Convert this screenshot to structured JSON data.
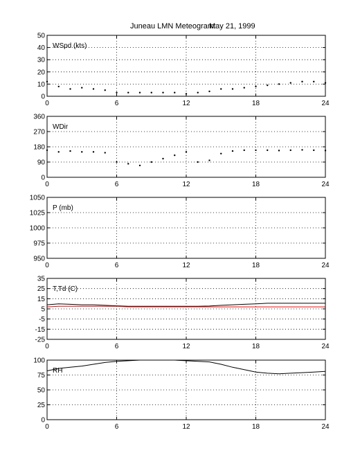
{
  "title": {
    "station": "Juneau LMN Meteogram:",
    "date": "May 21, 1999"
  },
  "chart_data": [
    {
      "type": "scatter",
      "label": "WSpd (kts)",
      "xlim": [
        0,
        24
      ],
      "xticks": [
        0,
        6,
        12,
        18,
        24
      ],
      "ylim": [
        0,
        50
      ],
      "yticks": [
        0,
        10,
        20,
        30,
        40,
        50
      ],
      "grid": true,
      "series": [
        {
          "color": "#000000",
          "x": [
            0,
            1,
            2,
            3,
            4,
            5,
            6,
            7,
            8,
            9,
            10,
            11,
            12,
            13,
            14,
            15,
            16,
            17,
            18,
            19,
            20,
            21,
            22,
            23,
            24
          ],
          "y": [
            12,
            8,
            6,
            7,
            6,
            5,
            3,
            3,
            3,
            3,
            3,
            3,
            2,
            3,
            4,
            6,
            6,
            7,
            8,
            9,
            10,
            11,
            12,
            12,
            11
          ]
        }
      ]
    },
    {
      "type": "scatter",
      "label": "WDir",
      "xlim": [
        0,
        24
      ],
      "xticks": [
        0,
        6,
        12,
        18,
        24
      ],
      "ylim": [
        0,
        360
      ],
      "yticks": [
        0,
        90,
        180,
        270,
        360
      ],
      "grid": true,
      "series": [
        {
          "color": "#000000",
          "x": [
            0,
            1,
            2,
            3,
            4,
            5,
            6,
            7,
            8,
            9,
            10,
            11,
            12,
            13,
            14,
            15,
            16,
            17,
            18,
            19,
            20,
            21,
            22,
            23,
            24
          ],
          "y": [
            160,
            150,
            155,
            150,
            150,
            145,
            90,
            80,
            70,
            90,
            110,
            130,
            150,
            90,
            100,
            140,
            155,
            160,
            160,
            160,
            158,
            160,
            162,
            160,
            158
          ]
        }
      ]
    },
    {
      "type": "line",
      "label": "P (mb)",
      "xlim": [
        0,
        24
      ],
      "xticks": [
        0,
        6,
        12,
        18,
        24
      ],
      "ylim": [
        950,
        1050
      ],
      "yticks": [
        950,
        975,
        1000,
        1025,
        1050
      ],
      "grid": true,
      "series": []
    },
    {
      "type": "line",
      "label": "T,Td (C)",
      "xlim": [
        0,
        24
      ],
      "xticks": [
        0,
        6,
        12,
        18,
        24
      ],
      "ylim": [
        -25,
        35
      ],
      "yticks": [
        -25,
        -15,
        -5,
        5,
        15,
        25,
        35
      ],
      "grid": true,
      "series": [
        {
          "color": "#000000",
          "x": [
            0,
            1,
            2,
            3,
            4,
            5,
            6,
            7,
            8,
            9,
            10,
            11,
            12,
            13,
            14,
            15,
            16,
            17,
            18,
            19,
            20,
            21,
            22,
            23,
            24
          ],
          "y": [
            9,
            10,
            9.5,
            9,
            9,
            8.5,
            8,
            7.5,
            7.5,
            7.5,
            7.5,
            7.5,
            7.5,
            7.5,
            7.8,
            8.5,
            9,
            9.5,
            10,
            10.5,
            10.5,
            10.5,
            10.5,
            10.5,
            10.5
          ]
        },
        {
          "color": "#ff0000",
          "x": [
            0,
            1,
            2,
            3,
            4,
            5,
            6,
            7,
            8,
            9,
            10,
            11,
            12,
            13,
            14,
            15,
            16,
            17,
            18,
            19,
            20,
            21,
            22,
            23,
            24
          ],
          "y": [
            7,
            7.5,
            7.5,
            7.5,
            7.5,
            7.5,
            7.5,
            7,
            7,
            7,
            7,
            7,
            7,
            7,
            7,
            7,
            7,
            7,
            7,
            7,
            7,
            7,
            7,
            7,
            7
          ]
        }
      ]
    },
    {
      "type": "line",
      "label": "RH",
      "xlim": [
        0,
        24
      ],
      "xticks": [
        0,
        6,
        12,
        18,
        24
      ],
      "ylim": [
        0,
        100
      ],
      "yticks": [
        0,
        25,
        50,
        75,
        100
      ],
      "grid": true,
      "series": [
        {
          "color": "#000000",
          "x": [
            0,
            1,
            2,
            3,
            4,
            5,
            6,
            7,
            8,
            9,
            10,
            11,
            12,
            13,
            14,
            15,
            16,
            17,
            18,
            19,
            20,
            21,
            22,
            23,
            24
          ],
          "y": [
            82,
            86,
            88,
            90,
            93,
            96,
            98,
            99,
            100,
            100,
            100,
            100,
            99,
            98,
            97,
            93,
            88,
            84,
            80,
            78,
            77,
            78,
            79,
            80,
            81
          ]
        }
      ]
    }
  ]
}
